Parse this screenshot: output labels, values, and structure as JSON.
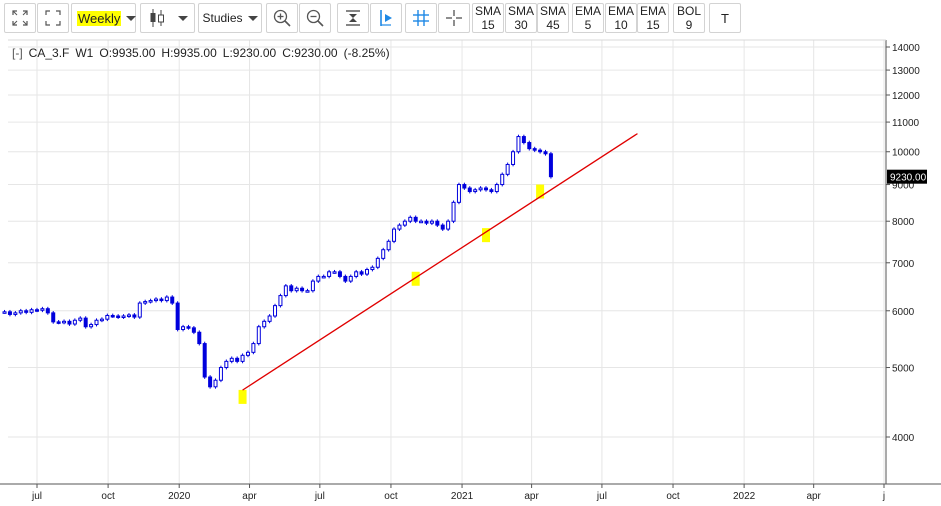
{
  "toolbar": {
    "period_label": "Weekly",
    "studies_label": "Studies",
    "text_tool_label": "T",
    "indicators": [
      {
        "name": "SMA",
        "value": "15"
      },
      {
        "name": "SMA",
        "value": "30"
      },
      {
        "name": "SMA",
        "value": "45"
      },
      {
        "name": "EMA",
        "value": "5"
      },
      {
        "name": "EMA",
        "value": "10"
      },
      {
        "name": "EMA",
        "value": "15"
      },
      {
        "name": "BOL",
        "value": "9"
      }
    ]
  },
  "legend": {
    "collapse": "[-]",
    "symbol": "CA_3.F",
    "interval": "W1",
    "open": "O:9935.00",
    "high": "H:9935.00",
    "low": "L:9230.00",
    "close": "C:9230.00",
    "change": "(-8.25%)"
  },
  "price_tag": "9230.00",
  "colors": {
    "candle": "#0000dd",
    "trendline": "#e00000",
    "highlight": "#ffff00",
    "grid": "#e6e6e6",
    "price_tag_bg": "#000000"
  },
  "chart_data": {
    "type": "candlestick",
    "y_scale": "log",
    "ylim": [
      3400,
      14300
    ],
    "y_ticks": [
      4000,
      5000,
      6000,
      7000,
      8000,
      9000,
      10000,
      11000,
      12000,
      13000,
      14000
    ],
    "x_ticks": [
      "jul",
      "oct",
      "2020",
      "apr",
      "jul",
      "oct",
      "2021",
      "apr",
      "jul",
      "oct",
      "2022",
      "apr",
      "j"
    ],
    "x_tick_dates": [
      "2019-07-01",
      "2019-10-01",
      "2020-01-01",
      "2020-04-01",
      "2020-07-01",
      "2020-10-01",
      "2021-01-01",
      "2021-04-01",
      "2021-07-01",
      "2021-10-01",
      "2022-01-01",
      "2022-04-01",
      "2022-07-01"
    ],
    "approx_weekly_closes": [
      5980,
      5930,
      5960,
      6000,
      5970,
      6020,
      6010,
      6040,
      5960,
      5790,
      5780,
      5800,
      5750,
      5820,
      5860,
      5700,
      5740,
      5820,
      5840,
      5910,
      5900,
      5880,
      5900,
      5920,
      5880,
      6150,
      6180,
      6200,
      6230,
      6200,
      6270,
      6150,
      5650,
      5700,
      5680,
      5600,
      5400,
      4850,
      4700,
      4800,
      5000,
      5100,
      5150,
      5100,
      5200,
      5250,
      5400,
      5700,
      5800,
      5900,
      6100,
      6300,
      6500,
      6400,
      6450,
      6400,
      6400,
      6600,
      6700,
      6700,
      6800,
      6800,
      6700,
      6600,
      6700,
      6800,
      6750,
      6850,
      6900,
      7100,
      7300,
      7500,
      7800,
      7900,
      8000,
      8100,
      8000,
      8000,
      7950,
      8000,
      7900,
      7800,
      8000,
      8500,
      9000,
      8900,
      8800,
      8850,
      8900,
      8850,
      8800,
      9000,
      9300,
      9600,
      10000,
      10500,
      10300,
      10100,
      10050,
      10000,
      9935,
      9230
    ],
    "trendline": {
      "start": {
        "date": "2020-03-23",
        "value": 4650
      },
      "end": {
        "date": "2021-08-16",
        "value": 10600
      }
    },
    "highlighted_points": [
      {
        "date": "2020-03-23",
        "value": 4550
      },
      {
        "date": "2020-11-02",
        "value": 6650
      },
      {
        "date": "2021-02-01",
        "value": 7650
      },
      {
        "date": "2021-04-12",
        "value": 8800
      }
    ],
    "last_value": 9230
  }
}
